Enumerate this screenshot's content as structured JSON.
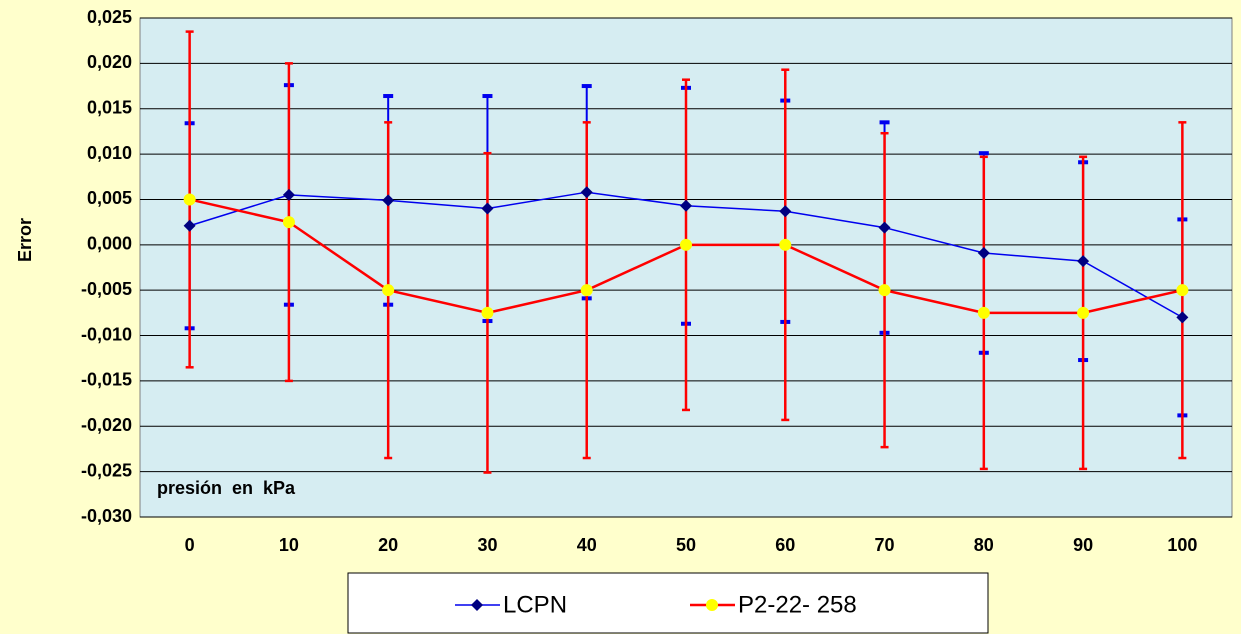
{
  "chart_data": {
    "type": "line",
    "ylabel": "Error",
    "annotation": "presión  en  kPa",
    "categories": [
      "0",
      "10",
      "20",
      "30",
      "40",
      "50",
      "60",
      "70",
      "80",
      "90",
      "100"
    ],
    "series": [
      {
        "name": "LCPN",
        "color": "#0000ee",
        "values": [
          0.0021,
          0.0055,
          0.0049,
          0.004,
          0.0058,
          0.0043,
          0.0037,
          0.0019,
          -0.0009,
          -0.0018,
          -0.008
        ],
        "errors": [
          0.0113,
          0.0121,
          0.0115,
          0.0124,
          0.0117,
          0.013,
          0.0122,
          0.0116,
          0.011,
          0.0109,
          0.0108
        ]
      },
      {
        "name": "P2-22- 258",
        "color": "#ff0000",
        "values": [
          0.005,
          0.0025,
          -0.005,
          -0.0075,
          -0.005,
          0,
          0,
          -0.005,
          -0.0075,
          -0.0075,
          -0.005
        ],
        "errors": [
          0.0185,
          0.0175,
          0.0185,
          0.0176,
          0.0185,
          0.0182,
          0.0193,
          0.0173,
          0.0172,
          0.0172,
          0.0185
        ]
      }
    ],
    "ylim": [
      -0.03,
      0.025
    ],
    "yticks": [
      {
        "value": -0.03,
        "label": "-0,030"
      },
      {
        "value": -0.025,
        "label": "-0,025"
      },
      {
        "value": -0.02,
        "label": "-0,020"
      },
      {
        "value": -0.015,
        "label": "-0,015"
      },
      {
        "value": -0.01,
        "label": "-0,010"
      },
      {
        "value": -0.005,
        "label": "-0,005"
      },
      {
        "value": 0,
        "label": "0,000"
      },
      {
        "value": 0.005,
        "label": "0,005"
      },
      {
        "value": 0.01,
        "label": "0,010"
      },
      {
        "value": 0.015,
        "label": "0,015"
      },
      {
        "value": 0.02,
        "label": "0,020"
      },
      {
        "value": 0.025,
        "label": "0,025"
      }
    ],
    "grid": true
  }
}
